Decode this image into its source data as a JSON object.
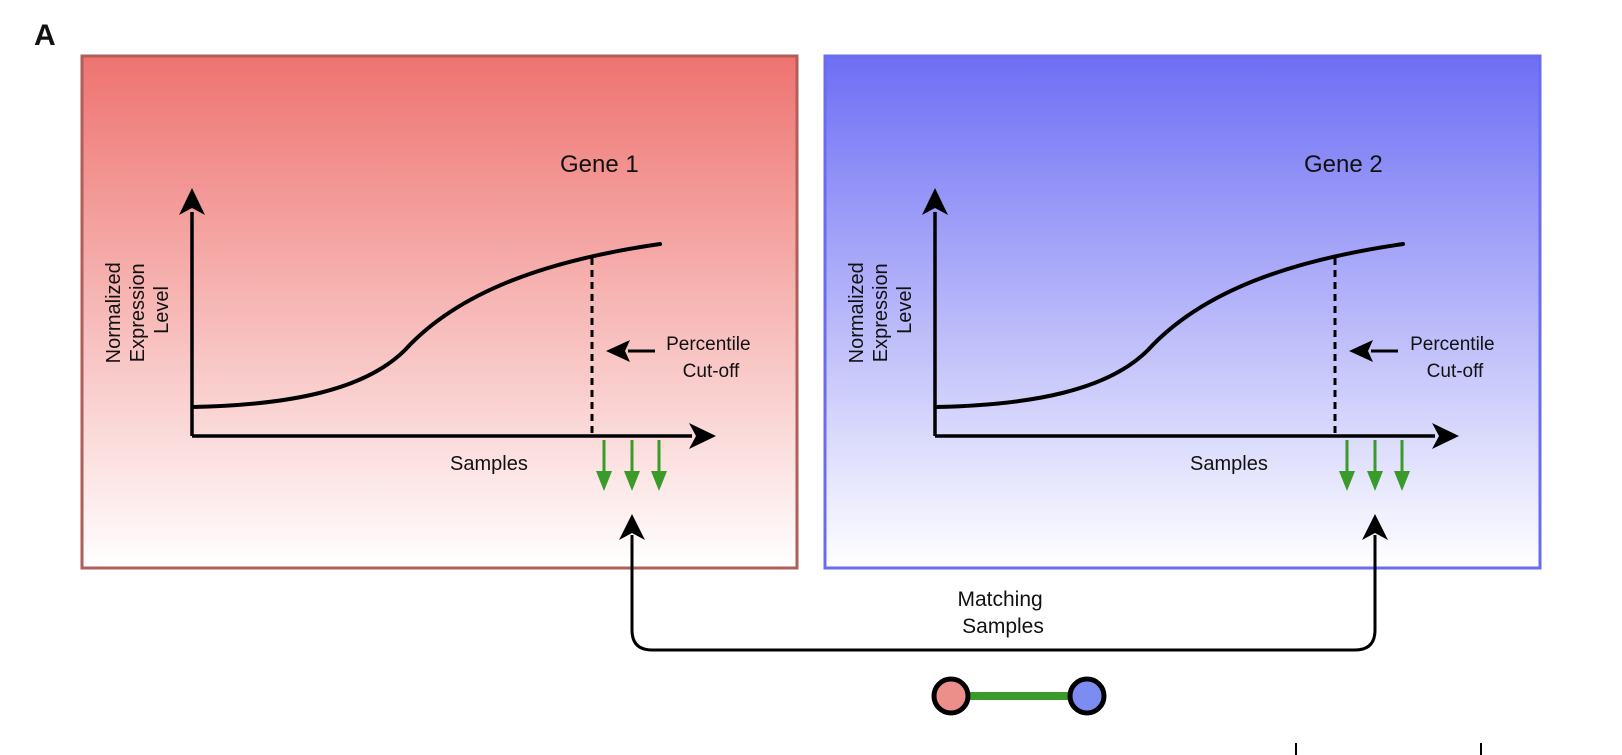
{
  "figure": {
    "panel_letter": "A",
    "matching_label": [
      "Matching",
      "Samples"
    ],
    "colors": {
      "left_panel_top": "#ee7370",
      "left_panel_bottom": "#ffffff",
      "left_panel_border": "#b05e58",
      "right_panel_top": "#6e6ef5",
      "right_panel_bottom": "#ffffff",
      "right_panel_border": "#6a6cf0",
      "sample_arrow": "#3a9a2a",
      "edge_line": "#3a9a2a",
      "node_left": "#ec8f8b",
      "node_right": "#7c8cf0"
    },
    "panels": [
      {
        "gene": "Gene 1",
        "y_label": [
          "Normalized",
          "Expression",
          "Level"
        ],
        "x_label": "Samples",
        "cutoff_label": [
          "Percentile",
          "Cut-off"
        ]
      },
      {
        "gene": "Gene 2",
        "y_label": [
          "Normalized",
          "Expression",
          "Level"
        ],
        "x_label": "Samples",
        "cutoff_label": [
          "Percentile",
          "Cut-off"
        ]
      }
    ]
  }
}
